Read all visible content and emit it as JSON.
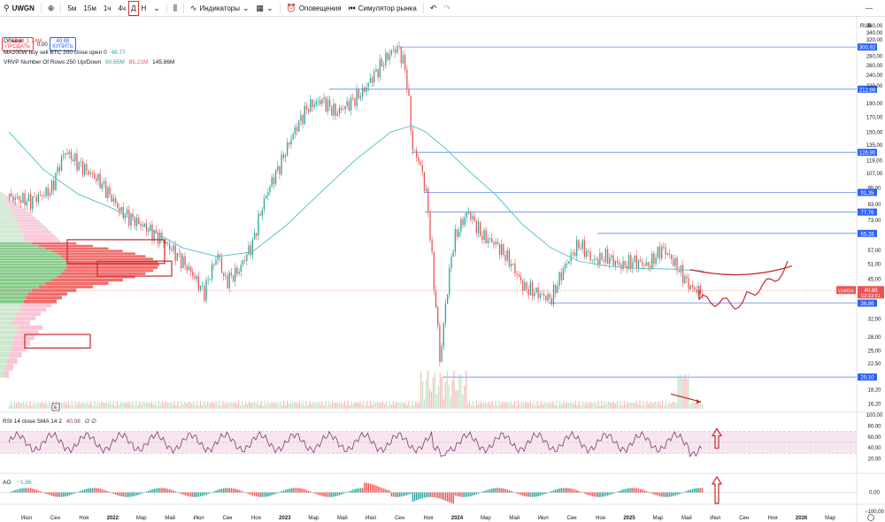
{
  "toolbar": {
    "symbol": "UWGN",
    "intervals": [
      "5м",
      "15м",
      "1ч",
      "4ч",
      "Д",
      "Н"
    ],
    "indicators_label": "Индикаторы",
    "alerts_label": "Оповещения",
    "replay_label": "Симулятор рынка"
  },
  "trade": {
    "sell_price": "40,88",
    "sell_label": "ПРОДАТЬ",
    "spread": "0,00",
    "buy_price": "40,88",
    "buy_label": "КУПИТЬ"
  },
  "legend": {
    "volume_label": "Объём",
    "volume_value": "1,74M",
    "ma_label": "MA200W buy sell BTC 200 close open 0",
    "ma_value": "48,77",
    "vrvp_label": "VRVP Number Of Rows 250 Up/Down",
    "vrvp_up": "60,65M",
    "vrvp_down": "85,21M",
    "vrvp_total": "145,86M",
    "rsi_label": "RSI 14 close SMA 14 2",
    "rsi_value": "40,08",
    "rsi_extra": "∅ ∅",
    "ao_label": "AO",
    "ao_value": "−1,66"
  },
  "colors": {
    "up": "#26a69a",
    "down": "#ef5350",
    "ma": "#5fc4cc",
    "level": "#2962ff",
    "annotation": "#c62828",
    "rsi": "#7e3b6b",
    "rsi_band": "#f3dbe9"
  },
  "chart_data": {
    "type": "line",
    "currency": "RUB",
    "price_axis_ticks": [
      "360,00",
      "340,00",
      "320,00",
      "300,92",
      "280,00",
      "260,00",
      "240,00",
      "220,00",
      "212,98",
      "190,00",
      "170,00",
      "150,00",
      "135,00",
      "126,90",
      "119,00",
      "107,00",
      "95,00",
      "91,35",
      "83,00",
      "77,76",
      "73,00",
      "65,28",
      "57,00",
      "51,00",
      "45,00",
      "36,86",
      "32,50",
      "28,00",
      "25,00",
      "22,50",
      "20,10",
      "18,20",
      "16,20"
    ],
    "levels": [
      {
        "value": "300,92",
        "label": "300,92"
      },
      {
        "value": "212,98",
        "label": "212,98"
      },
      {
        "value": "126,90",
        "label": "126,90"
      },
      {
        "value": "91,35",
        "label": "91,35"
      },
      {
        "value": "77,76",
        "label": "77,76"
      },
      {
        "value": "65,28",
        "label": "65,28"
      },
      {
        "value": "36,86",
        "label": "36,86"
      },
      {
        "value": "20,10",
        "label": "20,10"
      }
    ],
    "current": {
      "symbol": "UWGN",
      "price": "40,88",
      "countdown": "02:23:51"
    },
    "time_axis_labels": [
      "Июл",
      "Сен",
      "Ноя",
      "2022",
      "Мар",
      "Май",
      "Июл",
      "Сен",
      "Ноя",
      "2023",
      "Мар",
      "Май",
      "Июл",
      "Сен",
      "Ноя",
      "2024",
      "Мар",
      "Май",
      "Июл",
      "Сен",
      "Ноя",
      "2025",
      "Мар",
      "Май",
      "Июл",
      "Сен",
      "Ноя",
      "2026",
      "Мар"
    ],
    "rsi_axis_ticks": [
      "100,00",
      "80,00",
      "60,00",
      "40,00",
      "20,00"
    ],
    "ao_axis_ticks": [
      "0,00",
      "−100,00"
    ],
    "price_path": [
      [
        0,
        88
      ],
      [
        3,
        85
      ],
      [
        6,
        93
      ],
      [
        8,
        128
      ],
      [
        10,
        115
      ],
      [
        13,
        100
      ],
      [
        16,
        78
      ],
      [
        19,
        70
      ],
      [
        22,
        62
      ],
      [
        24,
        55
      ],
      [
        26,
        48
      ],
      [
        28,
        40
      ],
      [
        30,
        55
      ],
      [
        31,
        44
      ],
      [
        33,
        48
      ],
      [
        35,
        60
      ],
      [
        37,
        90
      ],
      [
        39,
        115
      ],
      [
        41,
        150
      ],
      [
        43,
        185
      ],
      [
        45,
        195
      ],
      [
        47,
        175
      ],
      [
        49,
        190
      ],
      [
        51,
        210
      ],
      [
        53,
        250
      ],
      [
        55,
        290
      ],
      [
        56,
        300
      ],
      [
        57,
        250
      ],
      [
        58,
        130
      ],
      [
        59,
        118
      ],
      [
        60,
        90
      ],
      [
        61,
        45
      ],
      [
        62,
        22
      ],
      [
        63,
        40
      ],
      [
        64,
        62
      ],
      [
        65,
        70
      ],
      [
        66,
        78
      ],
      [
        68,
        64
      ],
      [
        70,
        60
      ],
      [
        72,
        52
      ],
      [
        74,
        42
      ],
      [
        76,
        40
      ],
      [
        78,
        38
      ],
      [
        80,
        50
      ],
      [
        82,
        60
      ],
      [
        84,
        52
      ],
      [
        86,
        54
      ],
      [
        88,
        50
      ],
      [
        90,
        52
      ],
      [
        92,
        50
      ],
      [
        94,
        58
      ],
      [
        96,
        50
      ],
      [
        98,
        42
      ],
      [
        100,
        40
      ]
    ],
    "ma_path": [
      [
        0,
        150
      ],
      [
        5,
        110
      ],
      [
        10,
        90
      ],
      [
        15,
        80
      ],
      [
        20,
        68
      ],
      [
        25,
        58
      ],
      [
        30,
        54
      ],
      [
        35,
        56
      ],
      [
        40,
        70
      ],
      [
        45,
        92
      ],
      [
        50,
        120
      ],
      [
        55,
        150
      ],
      [
        58,
        158
      ],
      [
        60,
        150
      ],
      [
        63,
        130
      ],
      [
        66,
        110
      ],
      [
        70,
        90
      ],
      [
        74,
        70
      ],
      [
        78,
        58
      ],
      [
        82,
        52
      ],
      [
        86,
        50
      ],
      [
        90,
        49
      ],
      [
        95,
        48.77
      ],
      [
        100,
        48
      ]
    ]
  }
}
